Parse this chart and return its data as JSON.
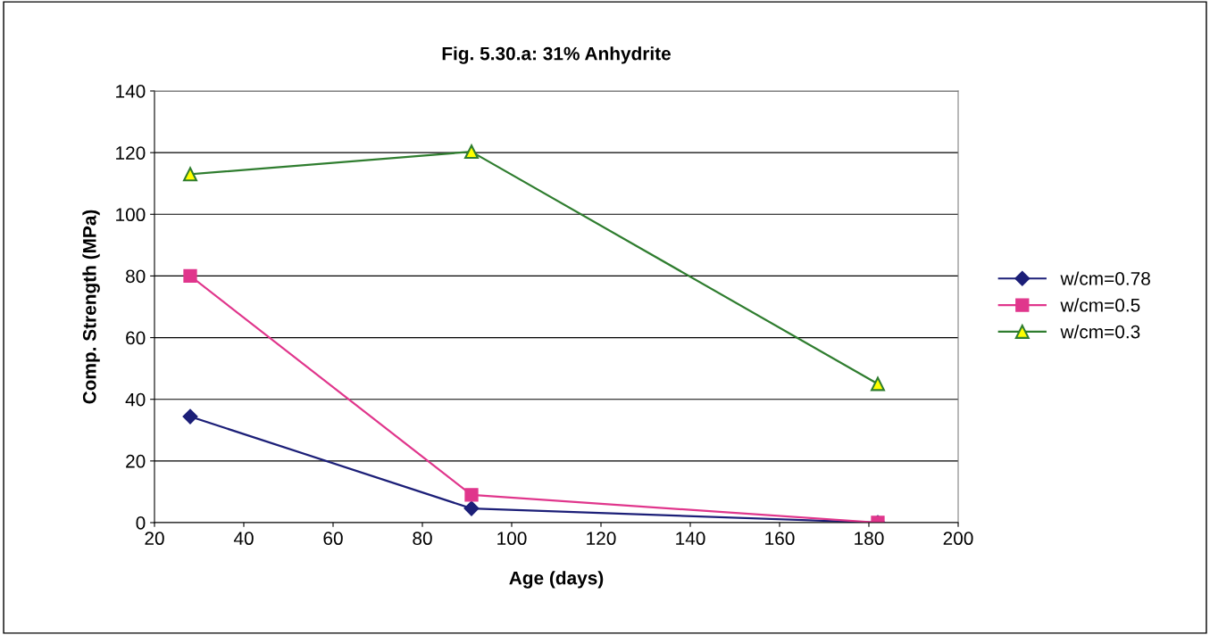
{
  "chart_data": {
    "type": "line",
    "title": "Fig. 5.30.a: 31% Anhydrite",
    "xlabel": "Age (days)",
    "ylabel": "Comp. Strength (MPa)",
    "xlim": [
      20,
      200
    ],
    "xticks": [
      20,
      40,
      60,
      80,
      100,
      120,
      140,
      160,
      180,
      200
    ],
    "ylim": [
      0,
      140
    ],
    "yticks": [
      0,
      20,
      40,
      60,
      80,
      100,
      120,
      140
    ],
    "grid": "y",
    "legend": "right",
    "series": [
      {
        "name": "w/cm=0.78",
        "color": "#1c1f78",
        "marker": "diamond",
        "x": [
          28,
          91,
          182
        ],
        "values": [
          34.4,
          4.6,
          0
        ]
      },
      {
        "name": "w/cm=0.5",
        "color": "#e0368c",
        "marker": "square",
        "x": [
          28,
          91,
          182
        ],
        "values": [
          80,
          9,
          0
        ]
      },
      {
        "name": "w/cm=0.3",
        "color": "#2f7d2f",
        "marker": "triangle",
        "x": [
          28,
          91,
          182
        ],
        "values": [
          113,
          120.3,
          45
        ]
      }
    ]
  }
}
